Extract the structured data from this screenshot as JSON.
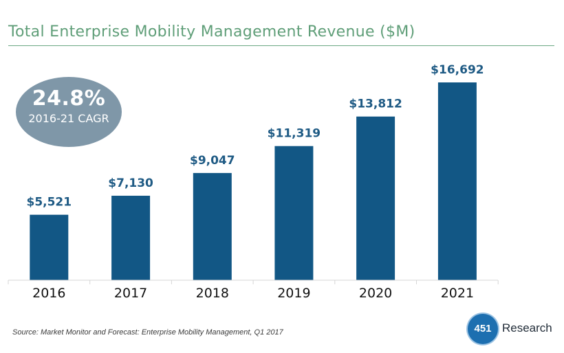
{
  "title": "Total Enterprise Mobility Management Revenue ($M)",
  "callout": {
    "value": "24.8%",
    "label": "2016-21 CAGR"
  },
  "source": "Source: Market Monitor and Forecast: Enterprise Mobility Management, Q1 2017",
  "logo": {
    "mark": "451",
    "text": "Research"
  },
  "colors": {
    "bar": "#125785",
    "label": "#1e5a84",
    "title": "#5f9e78",
    "callout": "#7f97a8"
  },
  "chart_data": {
    "type": "bar",
    "title": "Total Enterprise Mobility Management Revenue ($M)",
    "categories": [
      "2016",
      "2017",
      "2018",
      "2019",
      "2020",
      "2021"
    ],
    "values": [
      5521,
      7130,
      9047,
      11319,
      13812,
      16692
    ],
    "value_labels": [
      "$5,521",
      "$7,130",
      "$9,047",
      "$11,319",
      "$13,812",
      "$16,692"
    ],
    "xlabel": "",
    "ylabel": "",
    "ylim": [
      0,
      16692
    ],
    "grid": false,
    "legend": "none"
  }
}
